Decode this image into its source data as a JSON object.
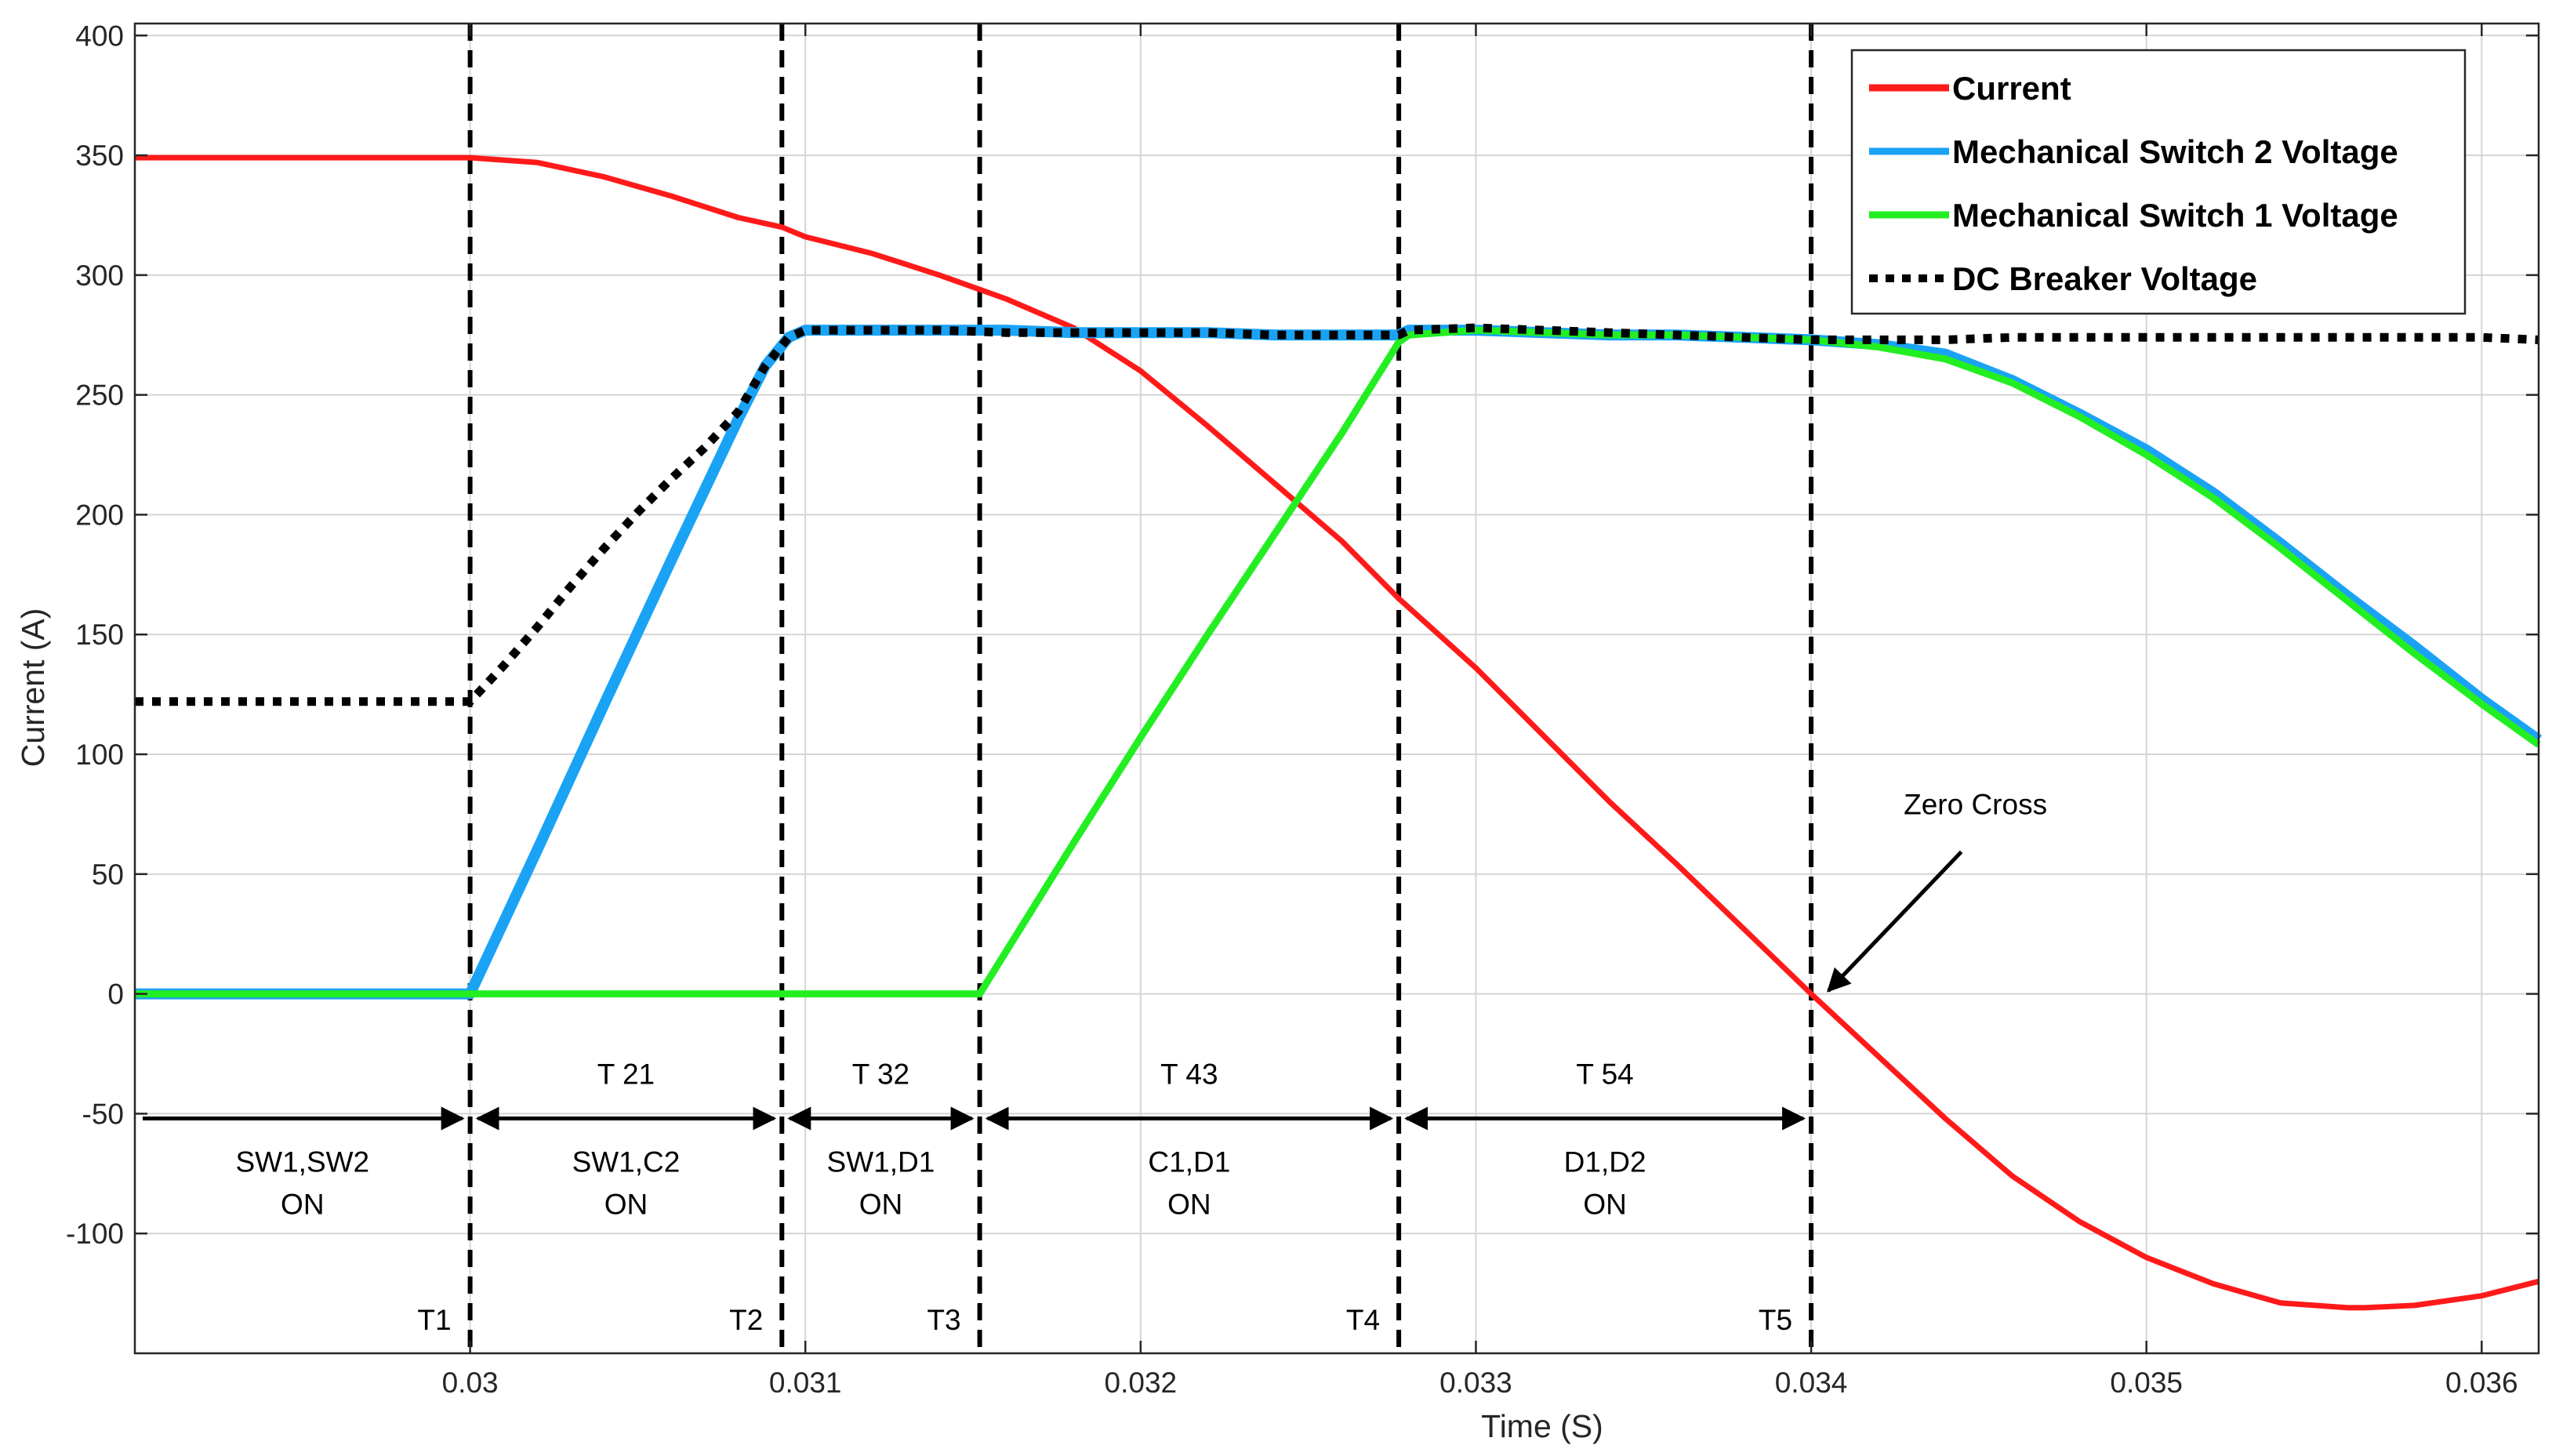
{
  "chart_data": {
    "type": "line",
    "title": "",
    "xlabel": "Time (S)",
    "ylabel": "Current (A)",
    "xlim": [
      0.029,
      0.03617
    ],
    "ylim": [
      -150,
      405
    ],
    "grid": true,
    "x_ticks": [
      0.03,
      0.031,
      0.032,
      0.033,
      0.034,
      0.035,
      0.036
    ],
    "x_tick_labels": [
      "0.03",
      "0.031",
      "0.032",
      "0.033",
      "0.034",
      "0.035",
      "0.036"
    ],
    "y_ticks": [
      -100,
      -50,
      0,
      50,
      100,
      150,
      200,
      250,
      300,
      350,
      400
    ],
    "y_tick_labels": [
      "-100",
      "-50",
      "0",
      "50",
      "100",
      "150",
      "200",
      "250",
      "300",
      "350",
      "400"
    ],
    "legend_position": "top-right",
    "series": [
      {
        "name": "Current",
        "color": "#ff1a1a",
        "style": "solid",
        "x": [
          0.029,
          0.0295,
          0.03,
          0.0302,
          0.0304,
          0.0306,
          0.0308,
          0.03093,
          0.031,
          0.0312,
          0.0314,
          0.03152,
          0.0316,
          0.0318,
          0.032,
          0.0322,
          0.0324,
          0.0326,
          0.03277,
          0.033,
          0.0332,
          0.0334,
          0.0336,
          0.0338,
          0.034,
          0.0342,
          0.0344,
          0.0346,
          0.0348,
          0.035,
          0.0352,
          0.0354,
          0.0356,
          0.03565,
          0.0358,
          0.036,
          0.03617
        ],
        "y": [
          349,
          349,
          349,
          347,
          341,
          333,
          324,
          320,
          316,
          309,
          300,
          294,
          290,
          278,
          260,
          237,
          213,
          189,
          165,
          136,
          108,
          80,
          54,
          27,
          0,
          -26,
          -52,
          -76,
          -95,
          -110,
          -121,
          -129,
          -131,
          -131,
          -130,
          -126,
          -120
        ]
      },
      {
        "name": "Mechanical Switch 2 Voltage",
        "color": "#1aa3f5",
        "style": "solid",
        "x": [
          0.029,
          0.03,
          0.0301,
          0.0302,
          0.0304,
          0.0306,
          0.0308,
          0.03088,
          0.03095,
          0.031,
          0.0312,
          0.0314,
          0.0316,
          0.0318,
          0.032,
          0.0322,
          0.0324,
          0.0326,
          0.03277,
          0.0328,
          0.033,
          0.0332,
          0.0334,
          0.0336,
          0.0338,
          0.034,
          0.0342,
          0.0344,
          0.0346,
          0.0348,
          0.035,
          0.0352,
          0.0354,
          0.0356,
          0.0358,
          0.036,
          0.03617
        ],
        "y": [
          0,
          0,
          30,
          60,
          121,
          181,
          240,
          262,
          274,
          277,
          277,
          277,
          277,
          276,
          276,
          276,
          275,
          275,
          275,
          277,
          277,
          276,
          275,
          275,
          274,
          273,
          271,
          267,
          256,
          242,
          227,
          209,
          188,
          166,
          145,
          123,
          106
        ]
      },
      {
        "name": "Mechanical Switch 1 Voltage",
        "color": "#22ee22",
        "style": "solid",
        "x": [
          0.029,
          0.0305,
          0.03152,
          0.0316,
          0.0318,
          0.032,
          0.0322,
          0.0324,
          0.0326,
          0.03277,
          0.0328,
          0.033,
          0.0332,
          0.0334,
          0.0336,
          0.0338,
          0.034,
          0.0342,
          0.0344,
          0.0346,
          0.0348,
          0.035,
          0.0352,
          0.0354,
          0.0356,
          0.0358,
          0.036,
          0.03617
        ],
        "y": [
          0,
          0,
          0,
          18,
          63,
          107,
          150,
          192,
          234,
          272,
          275,
          277,
          276,
          275,
          275,
          274,
          273,
          270,
          265,
          255,
          241,
          225,
          207,
          186,
          164,
          142,
          121,
          104
        ]
      },
      {
        "name": "DC Breaker Voltage",
        "color": "#000000",
        "style": "dotted",
        "x": [
          0.029,
          0.0295,
          0.03,
          0.0301,
          0.0302,
          0.0303,
          0.0304,
          0.0305,
          0.0306,
          0.0307,
          0.0308,
          0.03088,
          0.03095,
          0.031,
          0.0312,
          0.0314,
          0.0316,
          0.0318,
          0.032,
          0.0322,
          0.0324,
          0.0326,
          0.03277,
          0.0328,
          0.033,
          0.0332,
          0.0334,
          0.0336,
          0.0338,
          0.034,
          0.0342,
          0.0344,
          0.0346,
          0.0348,
          0.035,
          0.0352,
          0.0354,
          0.0356,
          0.0358,
          0.036,
          0.03617
        ],
        "y": [
          122,
          122,
          122,
          137,
          153,
          170,
          186,
          201,
          215,
          228,
          243,
          262,
          274,
          277,
          277,
          277,
          276,
          276,
          276,
          276,
          275,
          275,
          275,
          277,
          278,
          277,
          276,
          275,
          274,
          273,
          273,
          273,
          274,
          274,
          274,
          274,
          274,
          274,
          274,
          274,
          273
        ]
      }
    ],
    "vertical_markers": [
      {
        "label": "T1",
        "x": 0.03
      },
      {
        "label": "T2",
        "x": 0.03093
      },
      {
        "label": "T3",
        "x": 0.03152
      },
      {
        "label": "T4",
        "x": 0.03277
      },
      {
        "label": "T5",
        "x": 0.034
      }
    ],
    "intervals": [
      {
        "name": "",
        "state_line1": "SW1,SW2",
        "state_line2": "ON",
        "x_start": 0.029,
        "x_end": 0.03
      },
      {
        "name": "T 21",
        "state_line1": "SW1,C2",
        "state_line2": "ON",
        "x_start": 0.03,
        "x_end": 0.03093
      },
      {
        "name": "T 32",
        "state_line1": "SW1,D1",
        "state_line2": "ON",
        "x_start": 0.03093,
        "x_end": 0.03152
      },
      {
        "name": "T 43",
        "state_line1": "C1,D1",
        "state_line2": "ON",
        "x_start": 0.03152,
        "x_end": 0.03277
      },
      {
        "name": "T 54",
        "state_line1": "D1,D2",
        "state_line2": "ON",
        "x_start": 0.03277,
        "x_end": 0.034
      }
    ],
    "interval_arrow_y": -52,
    "annotations": [
      {
        "text": "Zero Cross",
        "point_x": 0.034,
        "point_y": 0,
        "text_x": 0.03449,
        "text_y": 75
      }
    ]
  }
}
